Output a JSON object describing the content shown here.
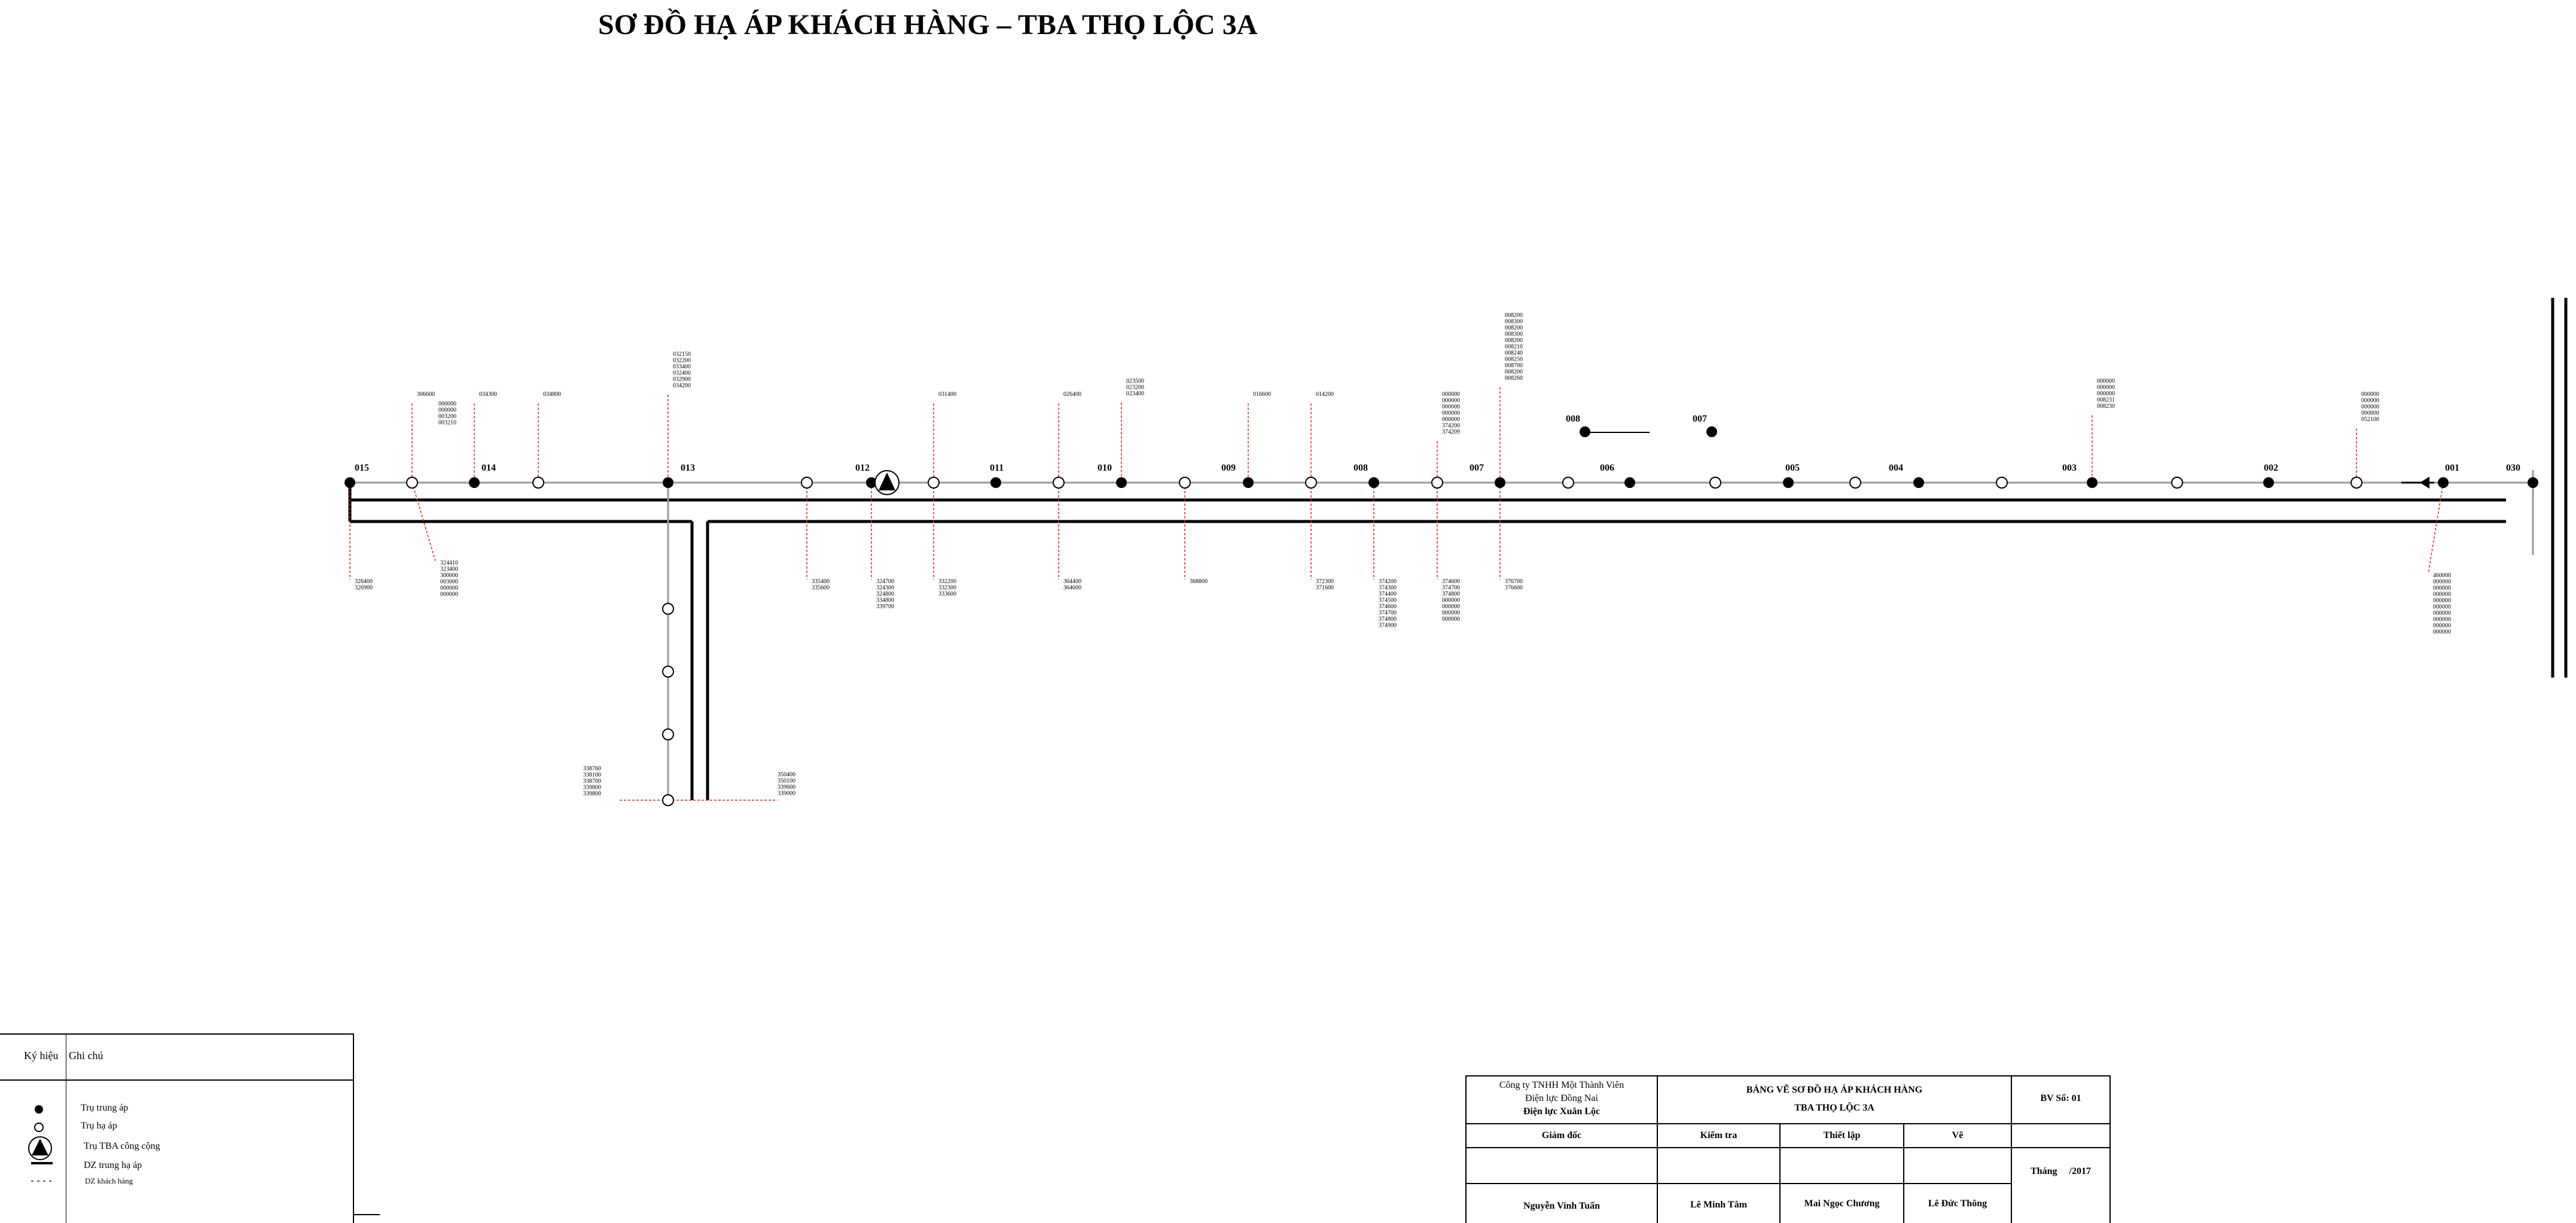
{
  "title": "SƠ ĐỒ HẠ ÁP KHÁCH HÀNG – TBA THỌ LỘC 3A",
  "poles": [
    {
      "id": "015",
      "kind": "mv"
    },
    {
      "id": "014",
      "kind": "mv"
    },
    {
      "id": "013",
      "kind": "mv"
    },
    {
      "id": "012",
      "kind": "mv"
    },
    {
      "id": "011",
      "kind": "mv"
    },
    {
      "id": "010",
      "kind": "mv"
    },
    {
      "id": "009",
      "kind": "mv"
    },
    {
      "id": "008",
      "kind": "mv"
    },
    {
      "id": "007",
      "kind": "mv"
    },
    {
      "id": "006",
      "kind": "mv"
    },
    {
      "id": "005",
      "kind": "mv"
    },
    {
      "id": "004",
      "kind": "mv"
    },
    {
      "id": "003",
      "kind": "mv"
    },
    {
      "id": "002",
      "kind": "mv"
    },
    {
      "id": "001",
      "kind": "mv"
    },
    {
      "id": "030",
      "kind": "mv"
    }
  ],
  "branch_poles": [
    {
      "id": "008"
    },
    {
      "id": "007"
    }
  ],
  "customer_groups": {
    "g_015_down": [
      "326400",
      "326900"
    ],
    "g_015b_up": [
      "306600"
    ],
    "g_015b_down": [
      "324410",
      "323400",
      "300000",
      "003000",
      "000000",
      "000000"
    ],
    "g_014_mid": [
      "000000",
      "000000",
      "003200",
      "003210"
    ],
    "g_014_up": [
      "034300"
    ],
    "g_014b_up": [
      "034800"
    ],
    "g_013_up": [
      "032150",
      "032200",
      "033400",
      "032400",
      "032900",
      "034200"
    ],
    "g_013b_down": [
      "335400",
      "335600"
    ],
    "g_012_down": [
      "324700",
      "324300",
      "324800",
      "334800",
      "339700"
    ],
    "g_012b_up": [
      "031400"
    ],
    "g_012b_down": [
      "332200",
      "332300",
      "333600"
    ],
    "g_011b_up": [
      "026400"
    ],
    "g_011b_down": [
      "364400",
      "364600"
    ],
    "g_010_up": [
      "023500",
      "023200",
      "023400"
    ],
    "g_010b_down": [
      "368800"
    ],
    "g_009_up": [
      "016600"
    ],
    "g_009b_up": [
      "014200"
    ],
    "g_009b_down": [
      "372300",
      "371600"
    ],
    "g_008_down": [
      "374200",
      "374300",
      "374400",
      "374500",
      "374600",
      "374700",
      "374800",
      "374900"
    ],
    "g_008b_up": [
      "000000",
      "000000",
      "000000",
      "000000",
      "000000",
      "374200",
      "374209"
    ],
    "g_008b_down": [
      "374600",
      "374700",
      "374800",
      "000000",
      "000000",
      "000000",
      "000000"
    ],
    "g_007_up": [
      "008200",
      "008300",
      "008200",
      "008300",
      "008200",
      "008210",
      "008240",
      "008250",
      "008700",
      "008200",
      "008260"
    ],
    "g_007_down": [
      "376700",
      "376600"
    ],
    "g_003_up": [
      "000000",
      "000000",
      "000000",
      "008231",
      "008230"
    ],
    "g_002_up": [
      "000000",
      "000000",
      "000000",
      "000000",
      "052100"
    ],
    "g_001_down": [
      "460000",
      "000000",
      "000000",
      "000000",
      "000000",
      "000000",
      "000000",
      "000000",
      "000000",
      "000000"
    ],
    "g_lat_left": [
      "338760",
      "338100",
      "338700",
      "339800",
      "339800"
    ],
    "g_lat_right": [
      "350400",
      "350100",
      "339600",
      "339000"
    ]
  },
  "legend": {
    "col_symbol": "Ký hiệu",
    "col_note": "Ghi chú",
    "items": [
      {
        "symbol": "filled-dot",
        "label": "Trụ trung áp"
      },
      {
        "symbol": "open-dot",
        "label": "Trụ hạ áp"
      },
      {
        "symbol": "tba-triangle",
        "label": "Trụ TBA công cộng"
      },
      {
        "symbol": "thick-line",
        "label": "DZ trung hạ áp"
      },
      {
        "symbol": "dashed-line",
        "label": "DZ khách hàng"
      }
    ]
  },
  "title_block": {
    "company_1": "Công ty TNHH Một Thành Viên",
    "company_2": "Điện lực Đồng Nai",
    "company_3": "Điện lực Xuân Lộc",
    "drawing_title_1": "BẢNG VẼ SƠ ĐỒ HẠ ÁP KHÁCH HÀNG",
    "drawing_title_2": "TBA THỌ LỘC 3A",
    "drawing_no": "BV Số: 01",
    "role_director": "Giám đốc",
    "role_check": "Kiểm tra",
    "role_design": "Thiết lập",
    "role_draw": "Vẽ",
    "date": "Tháng     /2017",
    "name_director": "Nguyễn Vinh Tuấn",
    "name_check": "Lê Minh Tâm",
    "name_design": "Mai Ngọc Chương",
    "name_draw": "Lê Đức Thông"
  },
  "colors": {
    "line": "#000000",
    "customer_line": "#e0201c",
    "feeder": "#9a9a9a"
  }
}
